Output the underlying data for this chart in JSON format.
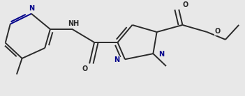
{
  "bg_color": "#e8e8e8",
  "bond_color": "#2a2a2a",
  "heteroatom_color": "#00008B",
  "bond_lw": 1.4,
  "dbo": 0.012,
  "font_size": 7.0,
  "fig_w": 3.51,
  "fig_h": 1.38,
  "dpi": 100,
  "xlim": [
    0.0,
    1.0
  ],
  "ylim": [
    0.0,
    1.0
  ]
}
